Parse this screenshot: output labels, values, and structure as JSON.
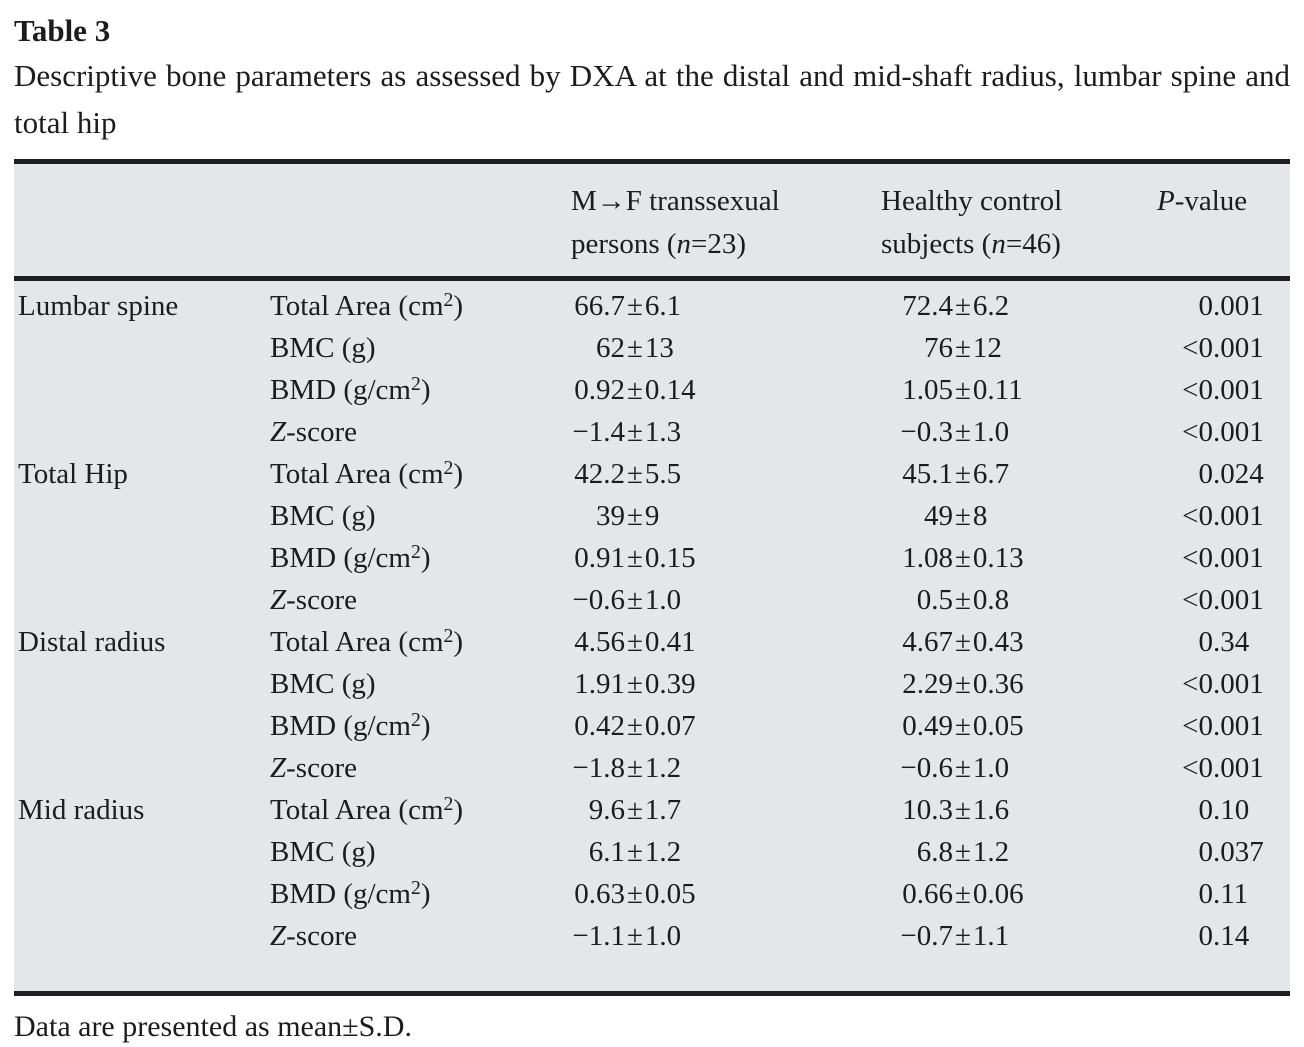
{
  "colors": {
    "table_background": "#e5e6e8",
    "rule_color": "#202024",
    "text_color": "#1c1c1e",
    "page_background": "#ffffff"
  },
  "table_label": "Table 3",
  "caption": "Descriptive bone parameters as assessed by DXA at the distal and mid-shaft radius, lumbar spine and total hip",
  "columns": {
    "region": "",
    "parameter": "",
    "group1": "M→F transsexual\npersons (*n*=23)",
    "group2": "Healthy control\nsubjects (*n*=46)",
    "pvalue": "*P*-value"
  },
  "groups": [
    {
      "region": "Lumbar spine",
      "rows": [
        {
          "param": "Total Area (cm^2^)",
          "mtf": "66.7±6.1",
          "control": "72.4±6.2",
          "p": "0.001"
        },
        {
          "param": "BMC (g)",
          "mtf": "62±13",
          "control": "76±12",
          "p": "<0.001"
        },
        {
          "param": "BMD (g/cm^2^)",
          "mtf": "0.92±0.14",
          "control": "1.05±0.11",
          "p": "<0.001"
        },
        {
          "param": "*Z*-score",
          "mtf": "−1.4±1.3",
          "control": "−0.3±1.0",
          "p": "<0.001"
        }
      ]
    },
    {
      "region": "Total Hip",
      "rows": [
        {
          "param": "Total Area (cm^2^)",
          "mtf": "42.2±5.5",
          "control": "45.1±6.7",
          "p": "0.024"
        },
        {
          "param": "BMC (g)",
          "mtf": "39±9",
          "control": "49±8",
          "p": "<0.001"
        },
        {
          "param": "BMD (g/cm^2^)",
          "mtf": "0.91±0.15",
          "control": "1.08±0.13",
          "p": "<0.001"
        },
        {
          "param": "*Z*-score",
          "mtf": "−0.6±1.0",
          "control": "0.5±0.8",
          "p": "<0.001"
        }
      ]
    },
    {
      "region": "Distal radius",
      "rows": [
        {
          "param": "Total Area (cm^2^)",
          "mtf": "4.56±0.41",
          "control": "4.67±0.43",
          "p": "0.34"
        },
        {
          "param": "BMC (g)",
          "mtf": "1.91±0.39",
          "control": "2.29±0.36",
          "p": "<0.001"
        },
        {
          "param": "BMD (g/cm^2^)",
          "mtf": "0.42±0.07",
          "control": "0.49±0.05",
          "p": "<0.001"
        },
        {
          "param": "*Z*-score",
          "mtf": "−1.8±1.2",
          "control": "−0.6±1.0",
          "p": "<0.001"
        }
      ]
    },
    {
      "region": "Mid radius",
      "rows": [
        {
          "param": "Total Area (cm^2^)",
          "mtf": "9.6±1.7",
          "control": "10.3±1.6",
          "p": "0.10"
        },
        {
          "param": "BMC (g)",
          "mtf": "6.1±1.2",
          "control": "6.8±1.2",
          "p": "0.037"
        },
        {
          "param": "BMD (g/cm^2^)",
          "mtf": "0.63±0.05",
          "control": "0.66±0.06",
          "p": "0.11"
        },
        {
          "param": "*Z*-score",
          "mtf": "−1.1±1.0",
          "control": "−0.7±1.1",
          "p": "0.14"
        }
      ]
    }
  ],
  "footnote": "Data are presented as mean±S.D."
}
